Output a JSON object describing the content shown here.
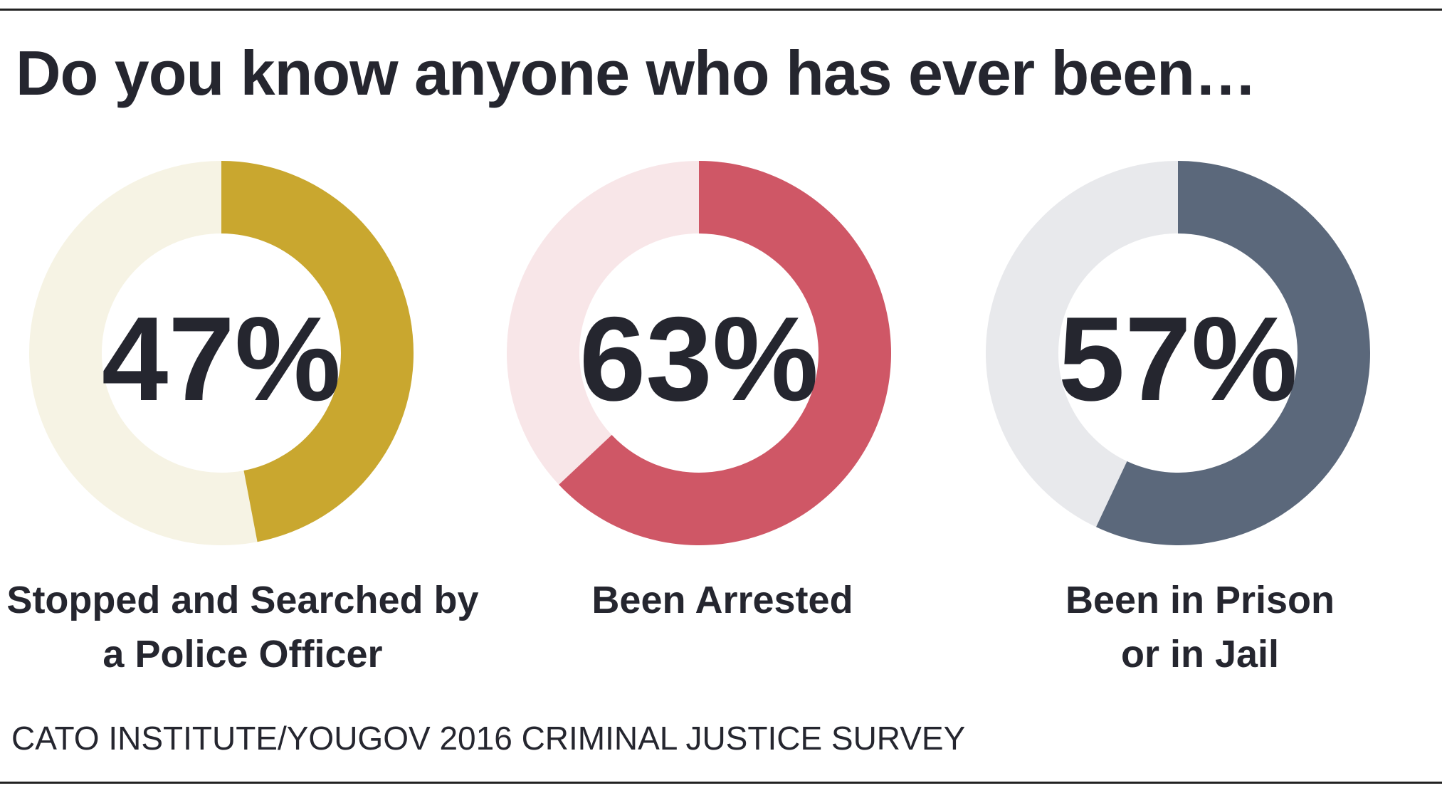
{
  "title": "Do you know anyone who has ever been…",
  "source": "CATO INSTITUTE/YOUGOV 2016 CRIMINAL JUSTICE SURVEY",
  "chart_data": [
    {
      "type": "donut",
      "categories": [
        "Stopped and Searched by\na Police Officer"
      ],
      "values": [
        47
      ],
      "value_labels": [
        "47%"
      ],
      "color": "#c9a72f",
      "track_color": "#f6f3e4"
    },
    {
      "type": "donut",
      "categories": [
        "Been Arrested"
      ],
      "values": [
        63
      ],
      "value_labels": [
        "63%"
      ],
      "color": "#cf5766",
      "track_color": "#f8e6e8"
    },
    {
      "type": "donut",
      "categories": [
        "Been in Prison\nor in Jail"
      ],
      "values": [
        57
      ],
      "value_labels": [
        "57%"
      ],
      "color": "#5b687b",
      "track_color": "#e8e9ec"
    }
  ]
}
